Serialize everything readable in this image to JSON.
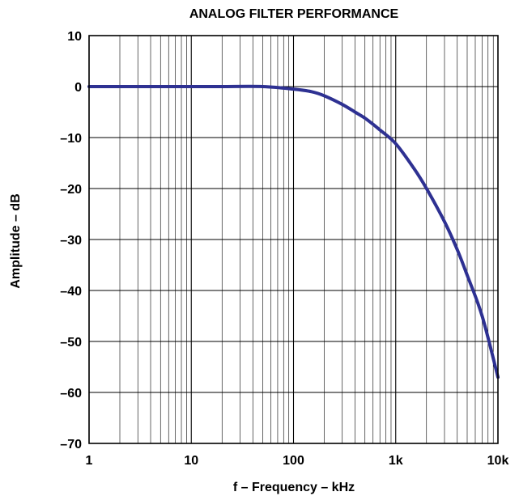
{
  "chart_data": {
    "type": "line",
    "title": "ANALOG FILTER PERFORMANCE",
    "xlabel": "f – Frequency – kHz",
    "ylabel": "Amplitude – dB",
    "x_scale": "log",
    "xlim": [
      1,
      10000
    ],
    "ylim": [
      -70,
      10
    ],
    "x_ticks": [
      1,
      10,
      100,
      1000,
      10000
    ],
    "x_tick_labels": [
      "1",
      "10",
      "100",
      "1k",
      "10k"
    ],
    "y_ticks": [
      10,
      0,
      -10,
      -20,
      -30,
      -40,
      -50,
      -60,
      -70
    ],
    "y_tick_labels": [
      "10",
      "0",
      "–10",
      "–20",
      "–30",
      "–40",
      "–50",
      "–60",
      "–70"
    ],
    "grid": true,
    "legend": "none",
    "series": [
      {
        "color": "#2e3192",
        "x": [
          1,
          10,
          20,
          50,
          100,
          150,
          200,
          300,
          400,
          500,
          700,
          1000,
          1500,
          2000,
          3000,
          4000,
          5000,
          7000,
          10000
        ],
        "y": [
          0,
          0,
          0,
          0,
          -0.5,
          -1,
          -1.8,
          -3.5,
          -5,
          -6.2,
          -8.5,
          -11.2,
          -16,
          -20,
          -26.5,
          -32,
          -37,
          -45,
          -57
        ]
      }
    ]
  }
}
